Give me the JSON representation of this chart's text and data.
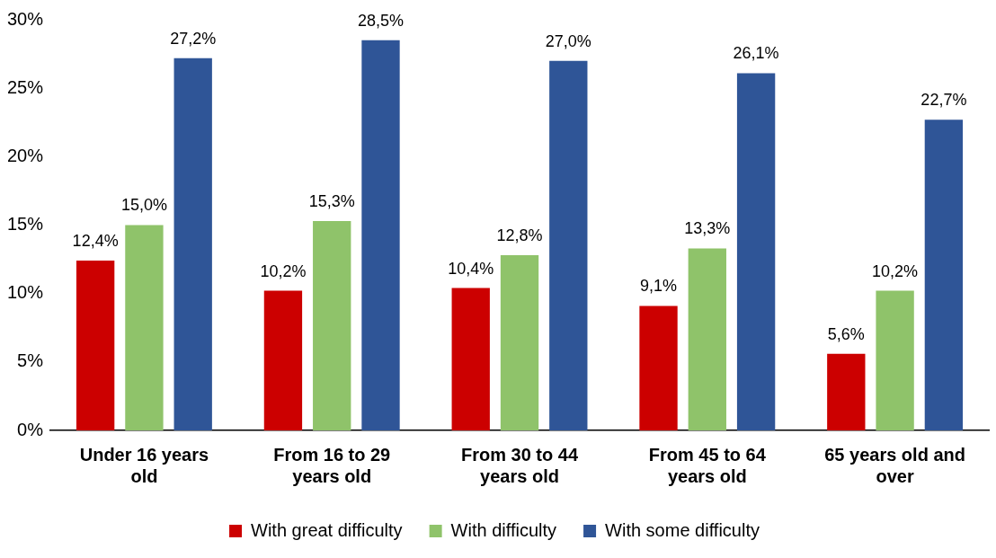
{
  "chart_data": {
    "type": "bar",
    "categories": [
      "Under 16 years old",
      "From 16 to 29 years old",
      "From 30 to 44 years old",
      "From 45 to 64 years old",
      "65 years old and over"
    ],
    "series": [
      {
        "name": "With great difficulty",
        "color": "#cc0000",
        "values": [
          12.4,
          10.2,
          10.4,
          9.1,
          5.6
        ],
        "value_labels": [
          "12,4%",
          "10,2%",
          "10,4%",
          "9,1%",
          "5,6%"
        ]
      },
      {
        "name": "With difficulty",
        "color": "#8fc36a",
        "values": [
          15.0,
          15.3,
          12.8,
          13.3,
          10.2
        ],
        "value_labels": [
          "15,0%",
          "15,3%",
          "12,8%",
          "13,3%",
          "10,2%"
        ]
      },
      {
        "name": "With some difficulty",
        "color": "#2f5597",
        "values": [
          27.2,
          28.5,
          27.0,
          26.1,
          22.7
        ],
        "value_labels": [
          "27,2%",
          "28,5%",
          "27,0%",
          "26,1%",
          "22,7%"
        ]
      }
    ],
    "ylim": [
      0,
      30
    ],
    "yticks": [
      {
        "value": 0,
        "label": "0%"
      },
      {
        "value": 5,
        "label": "5%"
      },
      {
        "value": 10,
        "label": "10%"
      },
      {
        "value": 15,
        "label": "15%"
      },
      {
        "value": 20,
        "label": "20%"
      },
      {
        "value": 25,
        "label": "25%"
      },
      {
        "value": 30,
        "label": "30%"
      }
    ],
    "grid": false,
    "legend": "bottom"
  }
}
